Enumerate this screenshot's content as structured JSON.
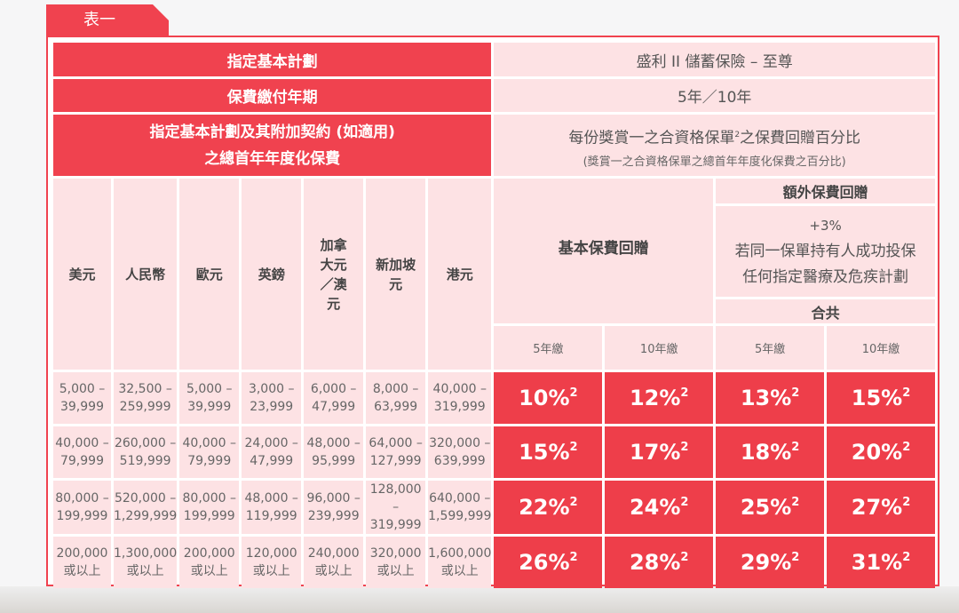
{
  "tab_label": "表一",
  "plan": {
    "label": "指定基本計劃",
    "value": "盛利 II 儲蓄保險 – 至尊"
  },
  "payment_term": {
    "label": "保費繳付年期",
    "value": "5年／10年"
  },
  "premium_header": {
    "line1": "指定基本計劃及其附加契約 (如適用)",
    "line2": "之總首年年度化保費"
  },
  "rebate_header": {
    "title_pre": "每份獎賞一之合資格保單",
    "title_sup": "2",
    "title_post": "之保費回贈百分比",
    "subtitle": "(獎賞一之合資格保單之總首年年度化保費之百分比)"
  },
  "currencies": [
    "美元",
    "人民幣",
    "歐元",
    "英鎊",
    "加拿大元／澳元",
    "新加坡元",
    "港元"
  ],
  "basic_rebate": "基本保費回贈",
  "extra_rebate": {
    "title": "額外保費回贈",
    "bonus": "+3%",
    "line1": "若同一保單持有人成功投保",
    "line2": "任何指定醫療及危疾計劃"
  },
  "total": "合共",
  "terms": [
    "5年繳",
    "10年繳",
    "5年繳",
    "10年繳"
  ],
  "footnote_mark": "2",
  "rows": [
    {
      "amounts": [
        [
          "5,000 –",
          "39,999"
        ],
        [
          "32,500 –",
          "259,999"
        ],
        [
          "5,000 –",
          "39,999"
        ],
        [
          "3,000 –",
          "23,999"
        ],
        [
          "6,000 –",
          "47,999"
        ],
        [
          "8,000 –",
          "63,999"
        ],
        [
          "40,000 –",
          "319,999"
        ]
      ],
      "rates": [
        "10%",
        "12%",
        "13%",
        "15%"
      ]
    },
    {
      "amounts": [
        [
          "40,000 –",
          "79,999"
        ],
        [
          "260,000 –",
          "519,999"
        ],
        [
          "40,000 –",
          "79,999"
        ],
        [
          "24,000 –",
          "47,999"
        ],
        [
          "48,000 –",
          "95,999"
        ],
        [
          "64,000 –",
          "127,999"
        ],
        [
          "320,000 –",
          "639,999"
        ]
      ],
      "rates": [
        "15%",
        "17%",
        "18%",
        "20%"
      ]
    },
    {
      "amounts": [
        [
          "80,000 –",
          "199,999"
        ],
        [
          "520,000 –",
          "1,299,999"
        ],
        [
          "80,000 –",
          "199,999"
        ],
        [
          "48,000 –",
          "119,999"
        ],
        [
          "96,000 –",
          "239,999"
        ],
        [
          "128,000 –",
          "319,999"
        ],
        [
          "640,000 –",
          "1,599,999"
        ]
      ],
      "rates": [
        "22%",
        "24%",
        "25%",
        "27%"
      ]
    },
    {
      "amounts": [
        [
          "200,000",
          "或以上"
        ],
        [
          "1,300,000",
          "或以上"
        ],
        [
          "200,000",
          "或以上"
        ],
        [
          "120,000",
          "或以上"
        ],
        [
          "240,000",
          "或以上"
        ],
        [
          "320,000",
          "或以上"
        ],
        [
          "1,600,000",
          "或以上"
        ]
      ],
      "rates": [
        "26%",
        "28%",
        "29%",
        "31%"
      ]
    }
  ]
}
